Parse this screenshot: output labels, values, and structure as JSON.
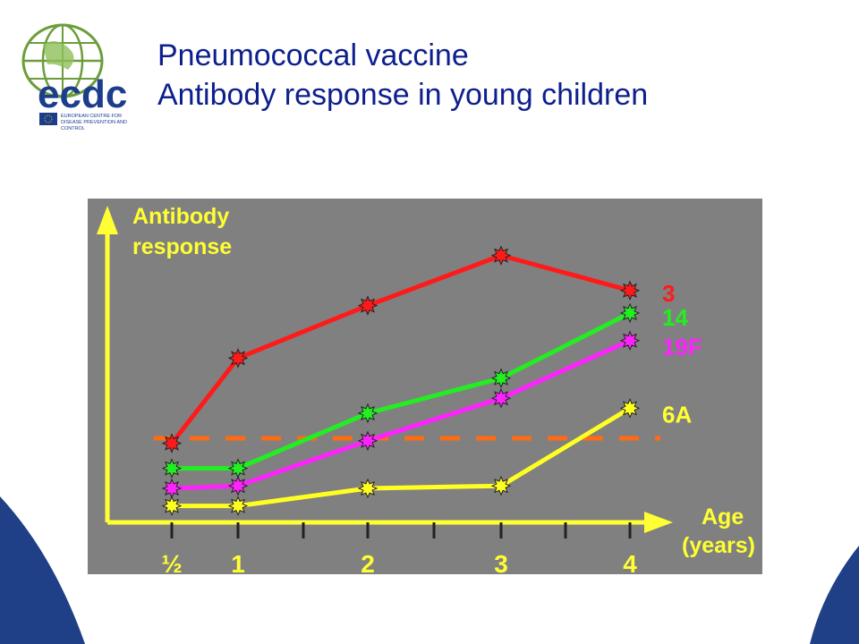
{
  "title_line1": "Pneumococcal vaccine",
  "title_line2": "Antibody response in young children",
  "logo": {
    "wordmark": "ecdc",
    "caption_line1": "EUROPEAN CENTRE FOR",
    "caption_line2": "DISEASE PREVENTION AND",
    "caption_line3": "CONTROL"
  },
  "colors": {
    "title": "#0d1f8c",
    "chart_background": "#808080",
    "axes": "#ffff33",
    "threshold": "#ff6a13"
  },
  "chart_data": {
    "type": "line",
    "ylabel_line1": "Antibody",
    "ylabel_line2": "response",
    "xlabel_line1": "Age",
    "xlabel_line2": "(years)",
    "x_tick_labels": [
      {
        "x": 0.5,
        "label": "½"
      },
      {
        "x": 1,
        "label": "1"
      },
      {
        "x": 2,
        "label": "2"
      },
      {
        "x": 3,
        "label": "3"
      },
      {
        "x": 4,
        "label": "4"
      }
    ],
    "x_minor_ticks": [
      1.5,
      2.5,
      3.5
    ],
    "xlim": [
      0.5,
      4
    ],
    "ylim": [
      0,
      100
    ],
    "y_ticks_shown": false,
    "threshold": {
      "y": 30,
      "style": "dashed",
      "color": "#ff6a13"
    },
    "series": [
      {
        "name": "3",
        "color": "#ff1a1a",
        "x": [
          0.5,
          1,
          2,
          3,
          4
        ],
        "y": [
          28,
          62,
          83,
          103,
          89
        ]
      },
      {
        "name": "14",
        "color": "#22ee22",
        "x": [
          0.5,
          1,
          2,
          3,
          4
        ],
        "y": [
          18,
          18,
          40,
          54,
          80
        ]
      },
      {
        "name": "19F",
        "color": "#ff22ff",
        "x": [
          0.5,
          1,
          2,
          3,
          4
        ],
        "y": [
          10,
          11,
          29,
          46,
          69
        ]
      },
      {
        "name": "6A",
        "color": "#ffff22",
        "x": [
          0.5,
          1,
          2,
          3,
          4
        ],
        "y": [
          3,
          3,
          10,
          11,
          42
        ]
      }
    ]
  }
}
